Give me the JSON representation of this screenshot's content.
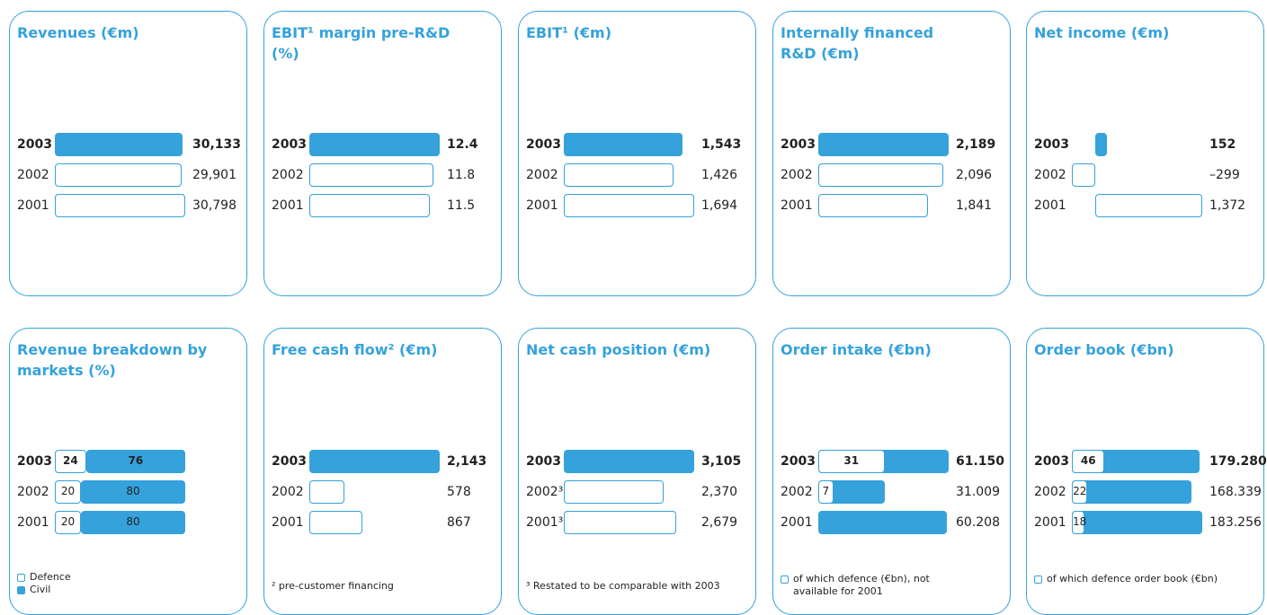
{
  "chart_data": [
    {
      "type": "bar",
      "title": "Revenues (€m)",
      "categories": [
        "2003",
        "2002",
        "2001"
      ],
      "values": [
        30133,
        29901,
        30798
      ],
      "value_labels": [
        "30,133",
        "29,901",
        "30,798"
      ],
      "color": "#35a2dc"
    },
    {
      "type": "bar",
      "title": "EBIT¹ margin pre-R&D (%)",
      "categories": [
        "2003",
        "2002",
        "2001"
      ],
      "values": [
        12.4,
        11.8,
        11.5
      ],
      "color": "#35a2dc"
    },
    {
      "type": "bar",
      "title": "EBIT¹ (€m)",
      "categories": [
        "2003",
        "2002",
        "2001"
      ],
      "values": [
        1543,
        1426,
        1694
      ],
      "value_labels": [
        "1,543",
        "1,426",
        "1,694"
      ],
      "color": "#35a2dc"
    },
    {
      "type": "bar",
      "title": "Internally financed R&D (€m)",
      "categories": [
        "2003",
        "2002",
        "2001"
      ],
      "values": [
        2189,
        2096,
        1841
      ],
      "value_labels": [
        "2,189",
        "2,096",
        "1,841"
      ],
      "color": "#35a2dc"
    },
    {
      "type": "bar",
      "title": "Net income (€m)",
      "categories": [
        "2003",
        "2002",
        "2001"
      ],
      "values": [
        152,
        -299,
        1372
      ],
      "value_labels": [
        "152",
        "–299",
        "1,372"
      ],
      "color": "#35a2dc"
    },
    {
      "type": "stacked",
      "title": "Revenue breakdown by markets (%)",
      "categories": [
        "2003",
        "2002",
        "2001"
      ],
      "series": [
        {
          "name": "Defence",
          "color": "#ffffff",
          "values": [
            24,
            20,
            20
          ]
        },
        {
          "name": "Civil",
          "color": "#35a2dc",
          "values": [
            76,
            80,
            80
          ]
        }
      ]
    },
    {
      "type": "bar",
      "title": "Free cash flow² (€m)",
      "categories": [
        "2003",
        "2002",
        "2001"
      ],
      "values": [
        2143,
        578,
        867
      ],
      "value_labels": [
        "2,143",
        "578",
        "867"
      ],
      "color": "#35a2dc",
      "note": "² pre-customer financing"
    },
    {
      "type": "bar",
      "title": "Net cash position (€m)",
      "categories": [
        "2003",
        "2002³",
        "2001³"
      ],
      "values": [
        3105,
        2370,
        2679
      ],
      "value_labels": [
        "3,105",
        "2,370",
        "2,679"
      ],
      "color": "#35a2dc",
      "note": "³ Restated to be comparable with 2003"
    },
    {
      "type": "overlay",
      "title": "Order intake (€bn)",
      "categories": [
        "2003",
        "2002",
        "2001"
      ],
      "values": [
        61.15,
        31.009,
        60.208
      ],
      "value_labels": [
        "61.150",
        "31.009",
        "60.208"
      ],
      "color": "#35a2dc",
      "series": [
        {
          "name": "of which defence (€bn), not available for 2001",
          "color": "#ffffff",
          "values": [
            31,
            7,
            null
          ]
        }
      ]
    },
    {
      "type": "overlay",
      "title": "Order book (€bn)",
      "categories": [
        "2003",
        "2002",
        "2001"
      ],
      "values": [
        179.28,
        168.339,
        183.256
      ],
      "value_labels": [
        "179.280",
        "168.339",
        "183.256"
      ],
      "color": "#35a2dc",
      "series": [
        {
          "name": "of which defence order book (€bn)",
          "color": "#ffffff",
          "values": [
            46,
            22,
            18
          ]
        }
      ]
    }
  ]
}
